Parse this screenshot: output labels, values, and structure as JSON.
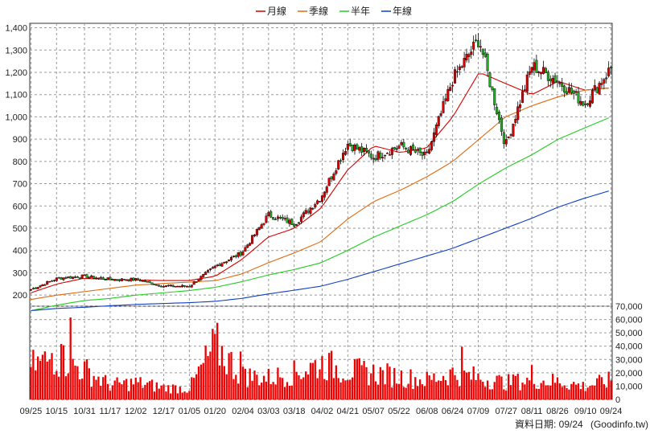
{
  "legend": [
    {
      "label": "月線",
      "color": "#d40000"
    },
    {
      "label": "季線",
      "color": "#e06a10"
    },
    {
      "label": "半年",
      "color": "#22cc22"
    },
    {
      "label": "年線",
      "color": "#1040c0"
    }
  ],
  "footer": {
    "date_label": "資料日期: 09/24",
    "source": "(Goodinfo.tw)"
  },
  "colors": {
    "up": "#dd0000",
    "down": "#22aa22",
    "volume": "#ee0000",
    "grid": "#9a9a9a"
  },
  "chart_data": [
    {
      "type": "candlestick",
      "title": "",
      "legend_placement": "top-center",
      "ylim": [
        150,
        1420
      ],
      "y_ticks": [
        200,
        300,
        400,
        500,
        600,
        700,
        800,
        900,
        1000,
        1100,
        1200,
        1300,
        1400
      ],
      "y_tick_labels": [
        "200",
        "300",
        "400",
        "500",
        "600",
        "700",
        "800",
        "900",
        "1,000",
        "1,100",
        "1,200",
        "1,300",
        "1,400"
      ],
      "x_tick_labels": [
        "09/25",
        "10/15",
        "10/31",
        "11/17",
        "12/02",
        "12/17",
        "01/05",
        "01/20",
        "02/04",
        "03/03",
        "03/18",
        "04/02",
        "04/21",
        "05/07",
        "05/22",
        "06/08",
        "06/24",
        "07/09",
        "07/27",
        "08/11",
        "08/26",
        "09/10",
        "09/24"
      ],
      "grid": true,
      "close_series": [
        {
          "date": "09/25",
          "close": 225
        },
        {
          "date": "10/15",
          "close": 275
        },
        {
          "date": "10/31",
          "close": 285
        },
        {
          "date": "11/17",
          "close": 270
        },
        {
          "date": "12/02",
          "close": 270
        },
        {
          "date": "12/17",
          "close": 240
        },
        {
          "date": "01/05",
          "close": 240
        },
        {
          "date": "01/20",
          "close": 330
        },
        {
          "date": "02/04",
          "close": 390
        },
        {
          "date": "03/03",
          "close": 560
        },
        {
          "date": "03/18",
          "close": 520
        },
        {
          "date": "04/02",
          "close": 640
        },
        {
          "date": "04/21",
          "close": 880
        },
        {
          "date": "05/07",
          "close": 820
        },
        {
          "date": "05/22",
          "close": 870
        },
        {
          "date": "06/08",
          "close": 820
        },
        {
          "date": "06/24",
          "close": 1170
        },
        {
          "date": "07/09",
          "close": 1350
        },
        {
          "date": "07/27",
          "close": 870
        },
        {
          "date": "08/11",
          "close": 1230
        },
        {
          "date": "08/26",
          "close": 1160
        },
        {
          "date": "09/10",
          "close": 1060
        },
        {
          "date": "09/24",
          "close": 1220
        }
      ],
      "series": [
        {
          "name": "月線",
          "points": [
            [
              "09/25",
              210
            ],
            [
              "10/15",
              250
            ],
            [
              "10/31",
              275
            ],
            [
              "11/17",
              270
            ],
            [
              "12/02",
              268
            ],
            [
              "12/17",
              265
            ],
            [
              "01/05",
              265
            ],
            [
              "01/20",
              285
            ],
            [
              "02/04",
              360
            ],
            [
              "03/03",
              460
            ],
            [
              "03/18",
              500
            ],
            [
              "04/02",
              590
            ],
            [
              "04/21",
              760
            ],
            [
              "05/07",
              870
            ],
            [
              "05/22",
              840
            ],
            [
              "06/08",
              860
            ],
            [
              "06/24",
              1000
            ],
            [
              "07/09",
              1200
            ],
            [
              "07/27",
              1150
            ],
            [
              "08/11",
              1100
            ],
            [
              "08/26",
              1160
            ],
            [
              "09/10",
              1120
            ],
            [
              "09/24",
              1130
            ]
          ]
        },
        {
          "name": "季線",
          "points": [
            [
              "09/25",
              180
            ],
            [
              "10/15",
              200
            ],
            [
              "10/31",
              215
            ],
            [
              "11/17",
              230
            ],
            [
              "12/02",
              245
            ],
            [
              "12/17",
              252
            ],
            [
              "01/05",
              258
            ],
            [
              "01/20",
              265
            ],
            [
              "02/04",
              295
            ],
            [
              "03/03",
              345
            ],
            [
              "03/18",
              390
            ],
            [
              "04/02",
              440
            ],
            [
              "04/21",
              540
            ],
            [
              "05/07",
              620
            ],
            [
              "05/22",
              670
            ],
            [
              "06/08",
              730
            ],
            [
              "06/24",
              800
            ],
            [
              "07/09",
              900
            ],
            [
              "07/27",
              1000
            ],
            [
              "08/11",
              1050
            ],
            [
              "08/26",
              1090
            ],
            [
              "09/10",
              1120
            ],
            [
              "09/24",
              1130
            ]
          ]
        },
        {
          "name": "半年",
          "points": [
            [
              "09/25",
              130
            ],
            [
              "10/15",
              155
            ],
            [
              "10/31",
              175
            ],
            [
              "11/17",
              185
            ],
            [
              "12/02",
              200
            ],
            [
              "12/17",
              210
            ],
            [
              "01/05",
              220
            ],
            [
              "01/20",
              235
            ],
            [
              "02/04",
              260
            ],
            [
              "03/03",
              290
            ],
            [
              "03/18",
              315
            ],
            [
              "04/02",
              345
            ],
            [
              "04/21",
              400
            ],
            [
              "05/07",
              460
            ],
            [
              "05/22",
              510
            ],
            [
              "06/08",
              560
            ],
            [
              "06/24",
              620
            ],
            [
              "07/09",
              700
            ],
            [
              "07/27",
              770
            ],
            [
              "08/11",
              830
            ],
            [
              "08/26",
              900
            ],
            [
              "09/10",
              950
            ],
            [
              "09/24",
              1000
            ]
          ]
        },
        {
          "name": "年線",
          "points": [
            [
              "09/25",
              130
            ],
            [
              "10/15",
              140
            ],
            [
              "10/31",
              145
            ],
            [
              "11/17",
              152
            ],
            [
              "12/02",
              158
            ],
            [
              "12/17",
              162
            ],
            [
              "01/05",
              166
            ],
            [
              "01/20",
              172
            ],
            [
              "02/04",
              185
            ],
            [
              "03/03",
              205
            ],
            [
              "03/18",
              222
            ],
            [
              "04/02",
              240
            ],
            [
              "04/21",
              270
            ],
            [
              "05/07",
              305
            ],
            [
              "05/22",
              340
            ],
            [
              "06/08",
              375
            ],
            [
              "06/24",
              410
            ],
            [
              "07/09",
              455
            ],
            [
              "07/27",
              500
            ],
            [
              "08/11",
              545
            ],
            [
              "08/26",
              595
            ],
            [
              "09/10",
              635
            ],
            [
              "09/24",
              670
            ]
          ]
        }
      ]
    },
    {
      "type": "bar",
      "title": "",
      "ylim": [
        0,
        70000
      ],
      "y_ticks": [
        0,
        10000,
        20000,
        30000,
        40000,
        50000,
        60000,
        70000
      ],
      "y_tick_labels": [
        "0",
        "10,000",
        "20,000",
        "30,000",
        "40,000",
        "50,000",
        "60,000",
        "70,000"
      ],
      "grid": true,
      "volume_profile": [
        {
          "date": "09/25",
          "value": 28000
        },
        {
          "date": "10/15",
          "value": 35000
        },
        {
          "date": "10/31",
          "value": 25000
        },
        {
          "date": "11/17",
          "value": 12000
        },
        {
          "date": "12/02",
          "value": 14000
        },
        {
          "date": "12/17",
          "value": 10000
        },
        {
          "date": "01/05",
          "value": 9000
        },
        {
          "date": "01/20",
          "value": 45000
        },
        {
          "date": "02/04",
          "value": 20000
        },
        {
          "date": "03/03",
          "value": 18000
        },
        {
          "date": "03/18",
          "value": 22000
        },
        {
          "date": "04/02",
          "value": 30000
        },
        {
          "date": "04/21",
          "value": 24000
        },
        {
          "date": "05/07",
          "value": 22000
        },
        {
          "date": "05/22",
          "value": 19000
        },
        {
          "date": "06/08",
          "value": 16000
        },
        {
          "date": "06/24",
          "value": 22000
        },
        {
          "date": "07/09",
          "value": 18000
        },
        {
          "date": "07/27",
          "value": 14000
        },
        {
          "date": "08/11",
          "value": 16000
        },
        {
          "date": "08/26",
          "value": 15000
        },
        {
          "date": "09/10",
          "value": 11000
        },
        {
          "date": "09/24",
          "value": 16000
        }
      ]
    }
  ]
}
